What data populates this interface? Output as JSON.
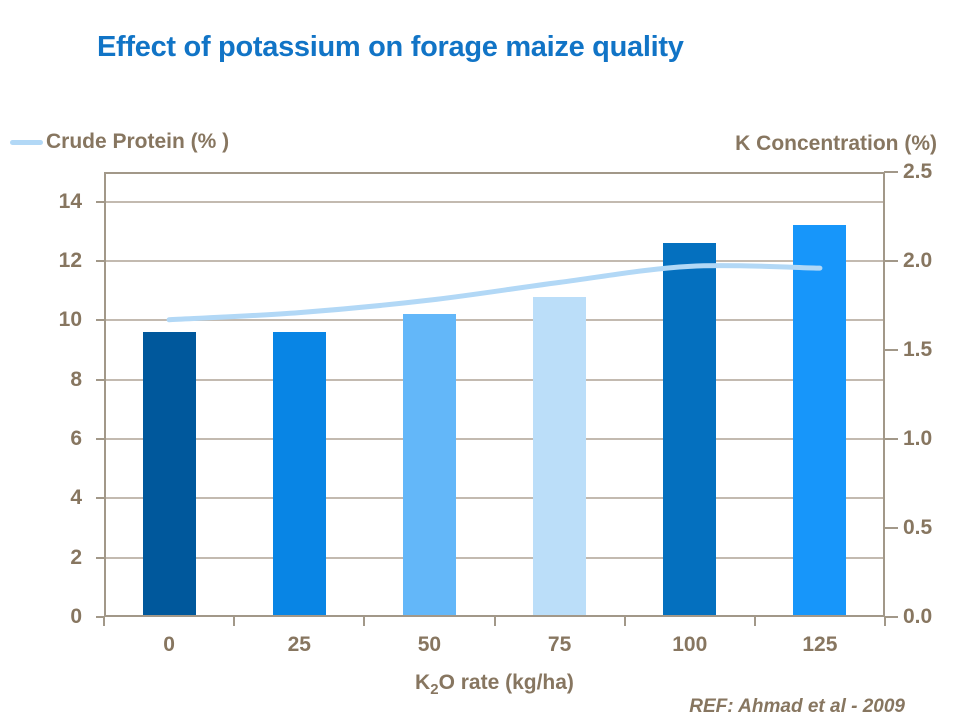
{
  "slide": {
    "title": "Effect of potassium on forage maize quality",
    "reference": "REF: Ahmad et al - 2009"
  },
  "legend": {
    "line_series_label": "Crude Protein (% )"
  },
  "axes": {
    "right_title": "K Concentration (%)",
    "x_title": {
      "pre": "K",
      "sub": "2",
      "post": "O rate (kg/ha)"
    }
  },
  "colors": {
    "title_text": "#1174C6",
    "chart_text": "#877660",
    "grid_line": "#C3BAB0",
    "axis_line": "#A29889",
    "protein_line": "#B2D8F6",
    "bars": [
      "#00589C",
      "#0885E5",
      "#63B7F9",
      "#BBDEF9",
      "#0470BF",
      "#1796FA"
    ]
  },
  "chart_data": {
    "type": "bar+line combo",
    "title": "Effect of potassium on forage maize quality",
    "categories": [
      "0",
      "25",
      "50",
      "75",
      "100",
      "125"
    ],
    "series": [
      {
        "name": "",
        "type": "bar",
        "axis": "left",
        "values": [
          9.6,
          9.6,
          10.2,
          10.8,
          12.6,
          13.2
        ],
        "note_colors_per_bar": true
      },
      {
        "name": "Crude Protein (% )",
        "type": "line",
        "axis": "right",
        "values": [
          1.67,
          1.71,
          1.78,
          1.88,
          1.97,
          1.96
        ]
      }
    ],
    "xlabel": "K2O rate (kg/ha)",
    "left_axis": {
      "range": [
        0,
        15
      ],
      "tick_values": [
        0,
        2,
        4,
        6,
        8,
        10,
        12,
        14
      ],
      "tick_labels": [
        "0",
        "2",
        "4",
        "6",
        "8",
        "10",
        "12",
        "14"
      ]
    },
    "right_axis": {
      "title": "K Concentration (%)",
      "range": [
        0,
        2.5
      ],
      "tick_values": [
        0,
        0.5,
        1,
        1.5,
        2,
        2.5
      ],
      "tick_labels": [
        "0.0",
        "0.5",
        "1.0",
        "1.5",
        "2.0",
        "2.5"
      ]
    },
    "grid": "horizontal gridlines at left-axis ticks",
    "legend_position": "top-left",
    "annotation": "REF: Ahmad et al - 2009"
  }
}
